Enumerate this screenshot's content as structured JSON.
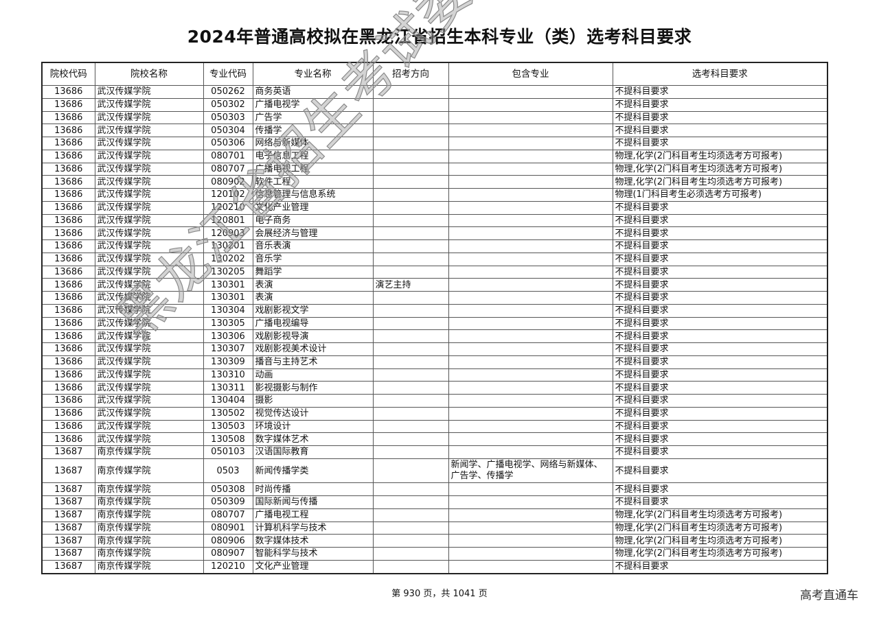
{
  "title": "2024年普通高校拟在黑龙江省招生本科专业（类）选考科目要求",
  "columns": [
    "院校代码",
    "院校名称",
    "专业代码",
    "专业名称",
    "招考方向",
    "包含专业",
    "选考科目要求"
  ],
  "rows": [
    [
      "13686",
      "武汉传媒学院",
      "050262",
      "商务英语",
      "",
      "",
      "不提科目要求"
    ],
    [
      "13686",
      "武汉传媒学院",
      "050302",
      "广播电视学",
      "",
      "",
      "不提科目要求"
    ],
    [
      "13686",
      "武汉传媒学院",
      "050303",
      "广告学",
      "",
      "",
      "不提科目要求"
    ],
    [
      "13686",
      "武汉传媒学院",
      "050304",
      "传播学",
      "",
      "",
      "不提科目要求"
    ],
    [
      "13686",
      "武汉传媒学院",
      "050306",
      "网络与新媒体",
      "",
      "",
      "不提科目要求"
    ],
    [
      "13686",
      "武汉传媒学院",
      "080701",
      "电子信息工程",
      "",
      "",
      "物理,化学(2门科目考生均须选考方可报考)"
    ],
    [
      "13686",
      "武汉传媒学院",
      "080707",
      "广播电视工程",
      "",
      "",
      "物理,化学(2门科目考生均须选考方可报考)"
    ],
    [
      "13686",
      "武汉传媒学院",
      "080902",
      "软件工程",
      "",
      "",
      "物理,化学(2门科目考生均须选考方可报考)"
    ],
    [
      "13686",
      "武汉传媒学院",
      "120102",
      "信息管理与信息系统",
      "",
      "",
      "物理(1门科目考生必须选考方可报考)"
    ],
    [
      "13686",
      "武汉传媒学院",
      "120210",
      "文化产业管理",
      "",
      "",
      "不提科目要求"
    ],
    [
      "13686",
      "武汉传媒学院",
      "120801",
      "电子商务",
      "",
      "",
      "不提科目要求"
    ],
    [
      "13686",
      "武汉传媒学院",
      "120903",
      "会展经济与管理",
      "",
      "",
      "不提科目要求"
    ],
    [
      "13686",
      "武汉传媒学院",
      "130201",
      "音乐表演",
      "",
      "",
      "不提科目要求"
    ],
    [
      "13686",
      "武汉传媒学院",
      "130202",
      "音乐学",
      "",
      "",
      "不提科目要求"
    ],
    [
      "13686",
      "武汉传媒学院",
      "130205",
      "舞蹈学",
      "",
      "",
      "不提科目要求"
    ],
    [
      "13686",
      "武汉传媒学院",
      "130301",
      "表演",
      "演艺主持",
      "",
      "不提科目要求"
    ],
    [
      "13686",
      "武汉传媒学院",
      "130301",
      "表演",
      "",
      "",
      "不提科目要求"
    ],
    [
      "13686",
      "武汉传媒学院",
      "130304",
      "戏剧影视文学",
      "",
      "",
      "不提科目要求"
    ],
    [
      "13686",
      "武汉传媒学院",
      "130305",
      "广播电视编导",
      "",
      "",
      "不提科目要求"
    ],
    [
      "13686",
      "武汉传媒学院",
      "130306",
      "戏剧影视导演",
      "",
      "",
      "不提科目要求"
    ],
    [
      "13686",
      "武汉传媒学院",
      "130307",
      "戏剧影视美术设计",
      "",
      "",
      "不提科目要求"
    ],
    [
      "13686",
      "武汉传媒学院",
      "130309",
      "播音与主持艺术",
      "",
      "",
      "不提科目要求"
    ],
    [
      "13686",
      "武汉传媒学院",
      "130310",
      "动画",
      "",
      "",
      "不提科目要求"
    ],
    [
      "13686",
      "武汉传媒学院",
      "130311",
      "影视摄影与制作",
      "",
      "",
      "不提科目要求"
    ],
    [
      "13686",
      "武汉传媒学院",
      "130404",
      "摄影",
      "",
      "",
      "不提科目要求"
    ],
    [
      "13686",
      "武汉传媒学院",
      "130502",
      "视觉传达设计",
      "",
      "",
      "不提科目要求"
    ],
    [
      "13686",
      "武汉传媒学院",
      "130503",
      "环境设计",
      "",
      "",
      "不提科目要求"
    ],
    [
      "13686",
      "武汉传媒学院",
      "130508",
      "数字媒体艺术",
      "",
      "",
      "不提科目要求"
    ],
    [
      "13687",
      "南京传媒学院",
      "050103",
      "汉语国际教育",
      "",
      "",
      "不提科目要求"
    ],
    [
      "13687",
      "南京传媒学院",
      "0503",
      "新闻传播学类",
      "",
      "新闻学、广播电视学、网络与新媒体、广告学、传播学",
      "不提科目要求"
    ],
    [
      "13687",
      "南京传媒学院",
      "050308",
      "时尚传播",
      "",
      "",
      "不提科目要求"
    ],
    [
      "13687",
      "南京传媒学院",
      "050309",
      "国际新闻与传播",
      "",
      "",
      "不提科目要求"
    ],
    [
      "13687",
      "南京传媒学院",
      "080707",
      "广播电视工程",
      "",
      "",
      "物理,化学(2门科目考生均须选考方可报考)"
    ],
    [
      "13687",
      "南京传媒学院",
      "080901",
      "计算机科学与技术",
      "",
      "",
      "物理,化学(2门科目考生均须选考方可报考)"
    ],
    [
      "13687",
      "南京传媒学院",
      "080906",
      "数字媒体技术",
      "",
      "",
      "物理,化学(2门科目考生均须选考方可报考)"
    ],
    [
      "13687",
      "南京传媒学院",
      "080907",
      "智能科学与技术",
      "",
      "",
      "物理,化学(2门科目考生均须选考方可报考)"
    ],
    [
      "13687",
      "南京传媒学院",
      "120210",
      "文化产业管理",
      "",
      "",
      "不提科目要求"
    ]
  ],
  "footer": "第 930 页，共 1041 页",
  "brand": "高考直通车",
  "watermark": "黑龙江省招生考试委员会办公室"
}
